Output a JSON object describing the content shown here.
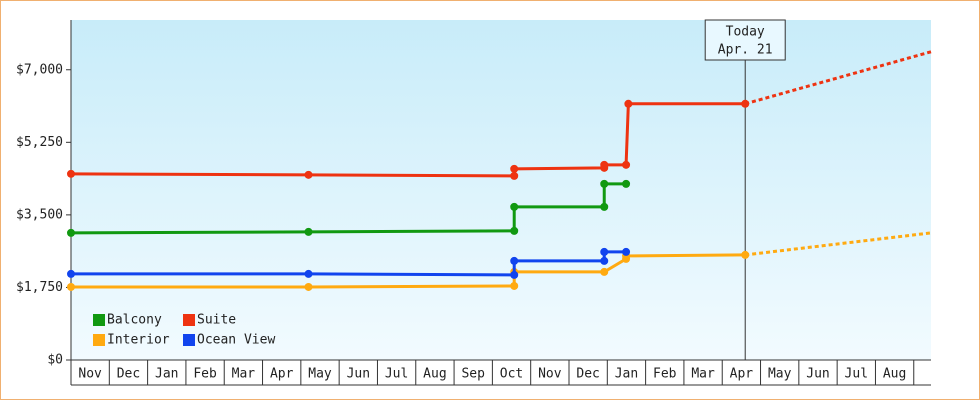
{
  "chart_data": {
    "type": "line",
    "categories": [
      "Nov",
      "Dec",
      "Jan",
      "Feb",
      "Mar",
      "Apr",
      "May",
      "Jun",
      "Jul",
      "Aug",
      "Sep",
      "Oct",
      "Nov",
      "Dec",
      "Jan",
      "Feb",
      "Mar",
      "Apr",
      "May",
      "Jun",
      "Jul",
      "Aug"
    ],
    "xlim": [
      0,
      22.45
    ],
    "ylim": [
      0,
      8200
    ],
    "yticks": [
      {
        "value": 0,
        "label": "$0"
      },
      {
        "value": 1750,
        "label": "$1,750"
      },
      {
        "value": 3500,
        "label": "$3,500"
      },
      {
        "value": 5250,
        "label": "$5,250"
      },
      {
        "value": 7000,
        "label": "$7,000"
      }
    ],
    "legend": "lower left",
    "series": [
      {
        "name": "Balcony",
        "color": "#119911",
        "x": [
          0,
          6.2,
          11.57,
          11.57,
          13.92,
          13.92,
          14.49
        ],
        "values": [
          3066,
          3090,
          3114,
          3693,
          3693,
          4248,
          4248
        ]
      },
      {
        "name": "Suite",
        "color": "#ee3311",
        "x": [
          0,
          6.2,
          11.57,
          11.57,
          13.92,
          13.92,
          14.49,
          14.55,
          17.6
        ],
        "values": [
          4490,
          4466,
          4441,
          4610,
          4634,
          4707,
          4707,
          6179,
          6179
        ],
        "projection": {
          "x": [
            17.6,
            22.45
          ],
          "values": [
            6179,
            7434
          ]
        }
      },
      {
        "name": "Interior",
        "color": "#ffaa11",
        "x": [
          0,
          6.2,
          11.57,
          11.57,
          13.92,
          14.49,
          14.49,
          17.6
        ],
        "values": [
          1762,
          1762,
          1786,
          2124,
          2124,
          2438,
          2510,
          2534
        ],
        "projection": {
          "x": [
            17.6,
            22.45
          ],
          "values": [
            2534,
            3066
          ]
        }
      },
      {
        "name": "Ocean View",
        "color": "#1144ee",
        "x": [
          0,
          6.2,
          11.57,
          11.57,
          13.92,
          13.92,
          14.49
        ],
        "values": [
          2076,
          2076,
          2052,
          2390,
          2390,
          2607,
          2607
        ]
      }
    ],
    "annotation": {
      "x": 17.6,
      "lines": [
        "Today",
        "Apr. 21"
      ]
    }
  }
}
